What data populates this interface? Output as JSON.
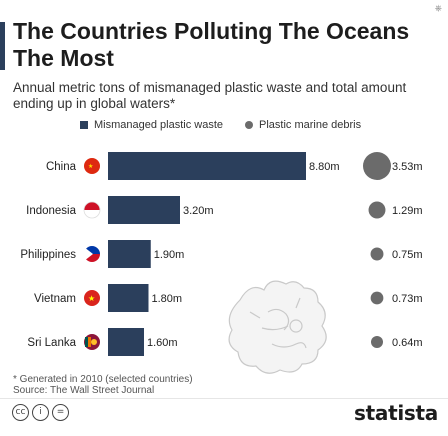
{
  "title": "The Countries Polluting The Oceans The Most",
  "subtitle": "Annual metric tons of mismanaged plastic waste and total amount ending up in global waters*",
  "legend": {
    "mismanaged": "Mismanaged plastic waste",
    "debris": "Plastic marine debris"
  },
  "footnote": "* Generated in 2010 (selected countries)",
  "source": "Source: The Wall Street Journal",
  "brand": "statista",
  "colors": {
    "bar": "#2b3f5c",
    "dot": "#6b6b6b",
    "text": "#222222"
  },
  "chart_data": {
    "type": "bar",
    "categories": [
      "China",
      "Indonesia",
      "Philippines",
      "Vietnam",
      "Sri Lanka"
    ],
    "series": [
      {
        "name": "Mismanaged plastic waste",
        "values": [
          8.8,
          3.2,
          1.9,
          1.8,
          1.6
        ],
        "labels": [
          "8.80m",
          "3.20m",
          "1.90m",
          "1.80m",
          "1.60m"
        ]
      },
      {
        "name": "Plastic marine debris",
        "values": [
          3.53,
          1.29,
          0.75,
          0.73,
          0.64
        ],
        "labels": [
          "3.53m",
          "1.29m",
          "0.75m",
          "0.73m",
          "0.64m"
        ]
      }
    ],
    "unit": "metric tons",
    "flag_icons": [
      "china-flag-icon",
      "indonesia-flag-icon",
      "philippines-flag-icon",
      "vietnam-flag-icon",
      "sri-lanka-flag-icon"
    ]
  }
}
